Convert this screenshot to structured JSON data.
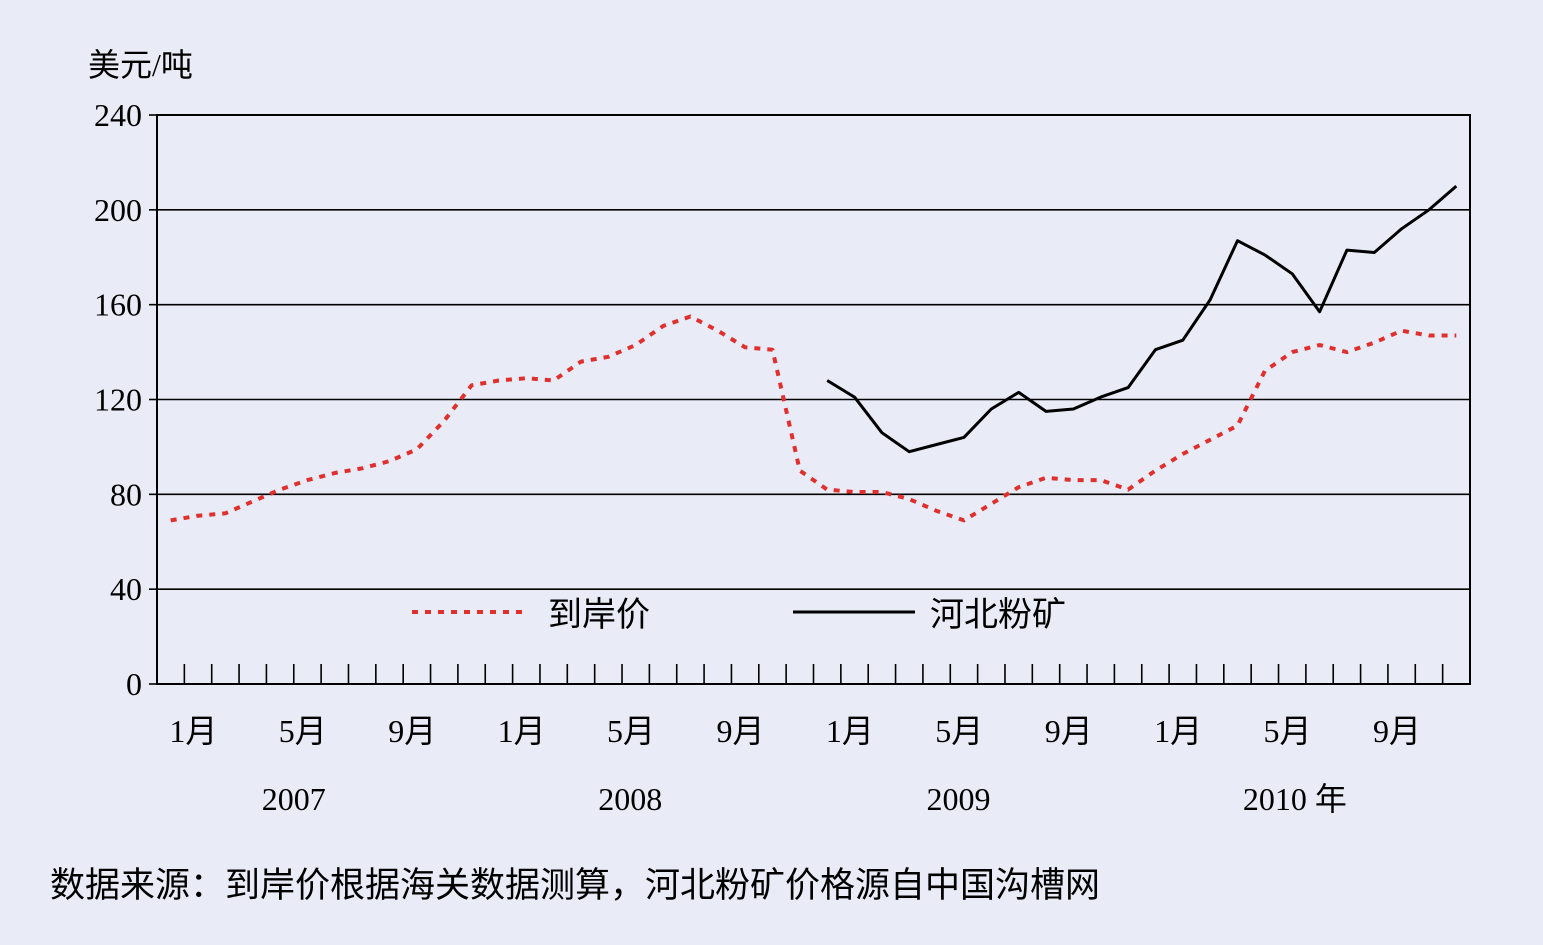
{
  "chart_data": {
    "type": "line",
    "ylabel": "美元/吨",
    "ylim": [
      0,
      240
    ],
    "yticks": [
      0,
      40,
      80,
      120,
      160,
      200,
      240
    ],
    "grid": true,
    "legend_placement": "bottom-center",
    "x_start": "2007-01",
    "x_end": "2010-12",
    "month_labels": [
      {
        "month_index": 0,
        "label": "1月"
      },
      {
        "month_index": 4,
        "label": "5月"
      },
      {
        "month_index": 8,
        "label": "9月"
      },
      {
        "month_index": 12,
        "label": "1月"
      },
      {
        "month_index": 16,
        "label": "5月"
      },
      {
        "month_index": 20,
        "label": "9月"
      },
      {
        "month_index": 24,
        "label": "1月"
      },
      {
        "month_index": 28,
        "label": "5月"
      },
      {
        "month_index": 32,
        "label": "9月"
      },
      {
        "month_index": 36,
        "label": "1月"
      },
      {
        "month_index": 40,
        "label": "5月"
      },
      {
        "month_index": 44,
        "label": "9月"
      }
    ],
    "year_labels": [
      "2007",
      "2008",
      "2009",
      "2010 年"
    ],
    "series": [
      {
        "name": "到岸价",
        "color": "#e0302e",
        "style": "dotted",
        "start": "2007-01",
        "values": [
          69,
          71,
          72,
          77,
          82,
          86,
          89,
          91,
          94,
          99,
          111,
          126,
          128,
          129,
          128,
          136,
          138,
          143,
          151,
          155,
          149,
          142,
          141,
          90,
          82,
          81,
          81,
          78,
          73,
          69,
          76,
          83,
          87,
          86,
          86,
          82,
          90,
          97,
          103,
          109,
          132,
          140,
          143,
          140,
          144,
          149,
          147,
          147
        ]
      },
      {
        "name": "河北粉矿",
        "color": "#000000",
        "style": "solid",
        "start": "2009-01",
        "values": [
          128,
          121,
          106,
          98,
          101,
          104,
          116,
          123,
          115,
          116,
          121,
          125,
          141,
          145,
          162,
          187,
          181,
          173,
          157,
          183,
          182,
          192,
          200,
          210
        ]
      }
    ],
    "source_note": "数据来源：到岸价根据海关数据测算，河北粉矿价格源自中国沟槽网"
  }
}
